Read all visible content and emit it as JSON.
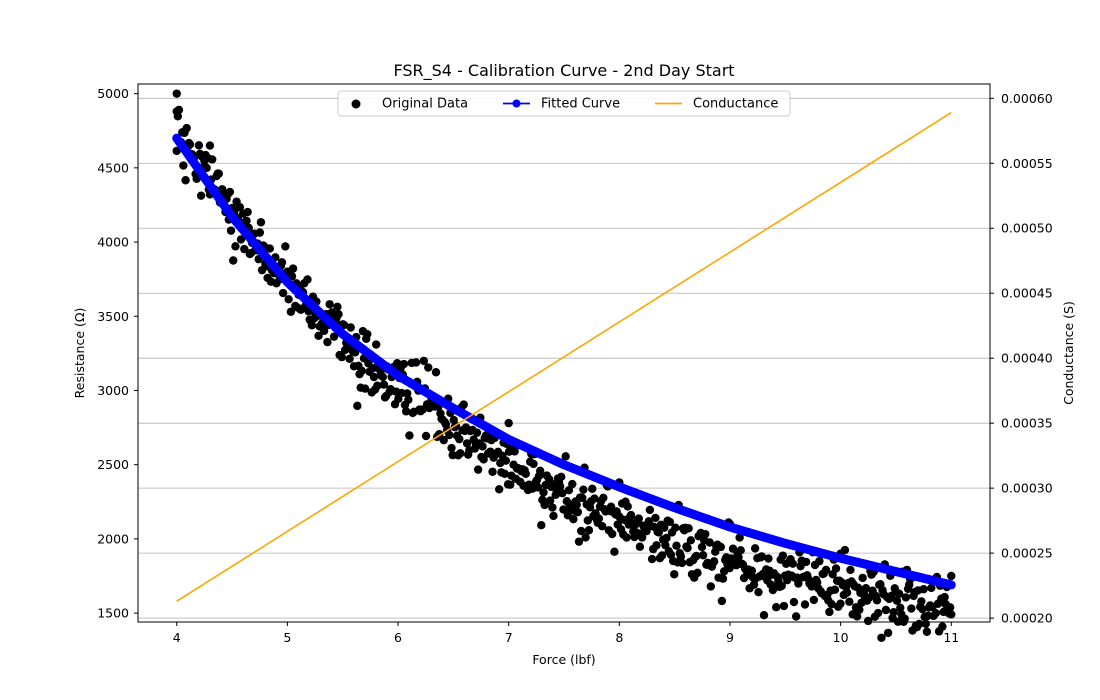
{
  "chart_data": {
    "type": "scatter",
    "title": "FSR_S4 - Calibration Curve - 2nd Day Start",
    "xlabel": "Force (lbf)",
    "ylabel_left": "Resistance (Ω)",
    "ylabel_right": "Conductance (S)",
    "xlim": [
      3.65,
      11.35
    ],
    "ylim_left": [
      1440,
      5065
    ],
    "ylim_right": [
      0.000197,
      0.000611
    ],
    "x_ticks": [
      "4",
      "5",
      "6",
      "7",
      "8",
      "9",
      "10",
      "11"
    ],
    "y_left_ticks": [
      "1500",
      "2000",
      "2500",
      "3000",
      "3500",
      "4000",
      "4500",
      "5000"
    ],
    "y_right_ticks": [
      "0.00020",
      "0.00025",
      "0.00030",
      "0.00035",
      "0.00040",
      "0.00045",
      "0.00050",
      "0.00055",
      "0.00060"
    ],
    "grid": "horizontal lines at right-axis ticks",
    "legend_position": "upper-center",
    "series": [
      {
        "name": "Original Data",
        "kind": "scatter",
        "axis": "left",
        "color": "#000000",
        "x_range": [
          4,
          11
        ],
        "count": 700,
        "noise_ohm": 100,
        "model": "resistance ≈ 1115 + 3585·exp(-0.315·(force-4))",
        "sample_points": [
          [
            4.0,
            5000
          ],
          [
            4.0,
            4880
          ],
          [
            4.3,
            4650
          ],
          [
            5.0,
            3800
          ],
          [
            6.0,
            3100
          ],
          [
            7.0,
            2780
          ],
          [
            8.0,
            2380
          ],
          [
            9.0,
            2100
          ],
          [
            10.0,
            1900
          ],
          [
            11.0,
            1750
          ]
        ]
      },
      {
        "name": "Fitted Curve",
        "kind": "line-markers",
        "axis": "left",
        "color": "#0000ff",
        "x": [
          4.0,
          4.5,
          5.0,
          5.5,
          6.0,
          6.5,
          7.0,
          7.5,
          8.0,
          8.5,
          9.0,
          9.5,
          10.0,
          10.5,
          11.0
        ],
        "y": [
          4700,
          4170,
          3730,
          3380,
          3100,
          2880,
          2670,
          2500,
          2350,
          2210,
          2080,
          1970,
          1870,
          1780,
          1690
        ]
      },
      {
        "name": "Conductance",
        "kind": "line",
        "axis": "right",
        "color": "#ffa500",
        "x": [
          4.0,
          11.0
        ],
        "y": [
          0.000213,
          0.000589
        ]
      }
    ]
  }
}
